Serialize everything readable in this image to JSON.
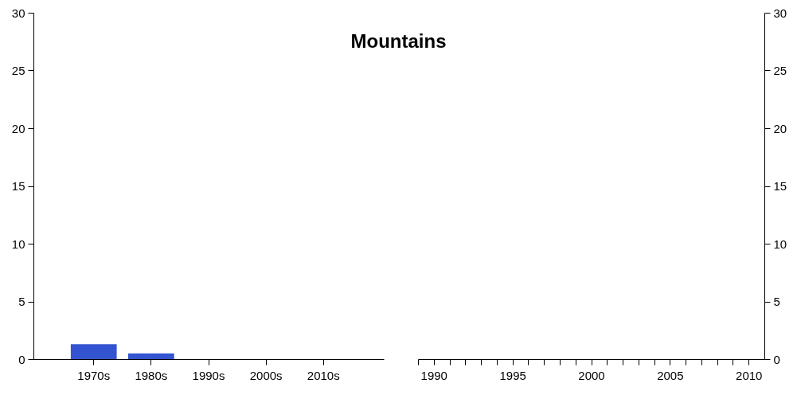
{
  "chart_data": [
    {
      "type": "bar",
      "title": "Mountains",
      "categories": [
        "1970s",
        "1980s",
        "1990s",
        "2000s",
        "2010s"
      ],
      "values": [
        1.3,
        0.5,
        0,
        0,
        0
      ],
      "color": "#3354d1",
      "ylim": [
        0,
        30
      ],
      "yticks": [
        0,
        5,
        10,
        15,
        20,
        25,
        30
      ],
      "grid": false
    },
    {
      "type": "line",
      "xlim": [
        1989,
        2011
      ],
      "xticks": [
        {
          "value": 1989,
          "label": null
        },
        1990,
        {
          "value": 1991,
          "label": null
        },
        {
          "value": 1992,
          "label": null
        },
        {
          "value": 1993,
          "label": null
        },
        {
          "value": 1994,
          "label": null
        },
        1995,
        {
          "value": 1996,
          "label": null
        },
        {
          "value": 1997,
          "label": null
        },
        {
          "value": 1998,
          "label": null
        },
        {
          "value": 1999,
          "label": null
        },
        2000,
        {
          "value": 2001,
          "label": null
        },
        {
          "value": 2002,
          "label": null
        },
        {
          "value": 2003,
          "label": null
        },
        {
          "value": 2004,
          "label": null
        },
        2005,
        {
          "value": 2006,
          "label": null
        },
        {
          "value": 2007,
          "label": null
        },
        {
          "value": 2008,
          "label": null
        },
        {
          "value": 2009,
          "label": null
        },
        2010
      ],
      "ylim": [
        0,
        30
      ],
      "yticks": [
        0,
        5,
        10,
        15,
        20,
        25,
        30
      ],
      "grid": false
    }
  ]
}
